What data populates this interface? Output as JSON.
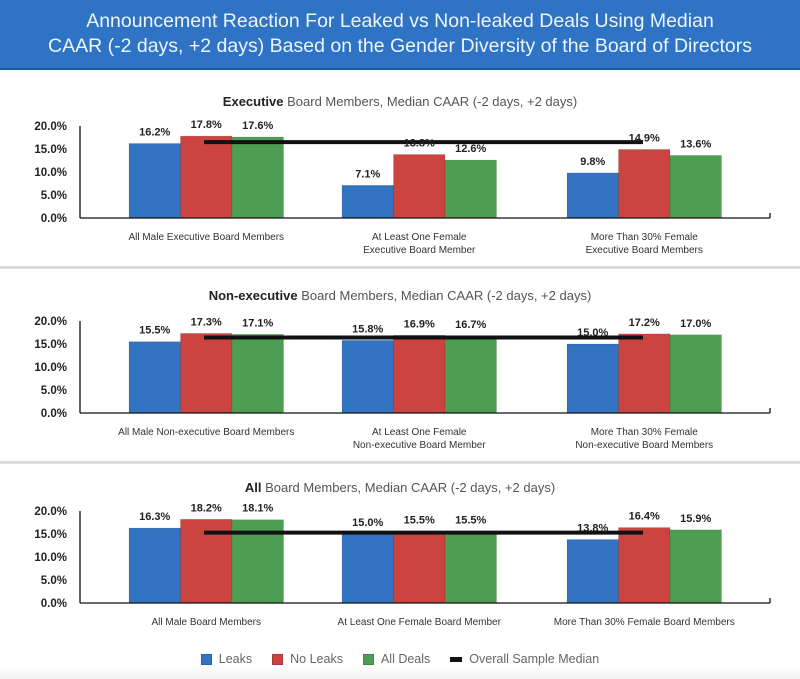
{
  "header": {
    "title_line1": "Announcement Reaction For Leaked vs Non-leaked Deals Using Median",
    "title_line2": "CAAR (-2 days, +2 days) Based on the Gender Diversity of the Board of Directors",
    "background_color": "#2f74c4"
  },
  "legend": {
    "items": [
      {
        "label": "Leaks",
        "color": "#3274c2",
        "shape": "square"
      },
      {
        "label": "No Leaks",
        "color": "#cc4440",
        "shape": "square"
      },
      {
        "label": "All Deals",
        "color": "#4d9e52",
        "shape": "square"
      },
      {
        "label": "Overall Sample Median",
        "color": "#111111",
        "shape": "line"
      }
    ]
  },
  "chart_data": [
    {
      "type": "bar",
      "title_bold": "Executive",
      "title_rest": " Board Members, Median CAAR (-2 days, +2 days)",
      "xlabel": "",
      "ylabel": "",
      "ylim": [
        0,
        20
      ],
      "yticks": [
        "0.0%",
        "5.0%",
        "10.0%",
        "15.0%",
        "20.0%"
      ],
      "grid": false,
      "legend_position": "bottom",
      "categories": [
        [
          "All Male Executive Board Members"
        ],
        [
          "At Least One Female",
          "Executive Board Member"
        ],
        [
          "More Than 30% Female",
          "Executive Board Members"
        ]
      ],
      "series": [
        {
          "name": "Leaks",
          "color": "#3274c2",
          "values": [
            16.2,
            7.1,
            9.8
          ],
          "labels": [
            "16.2%",
            "7.1%",
            "9.8%"
          ]
        },
        {
          "name": "No Leaks",
          "color": "#cc4440",
          "values": [
            17.8,
            13.8,
            14.9
          ],
          "labels": [
            "17.8%",
            "13.8%",
            "14.9%"
          ]
        },
        {
          "name": "All Deals",
          "color": "#4d9e52",
          "values": [
            17.6,
            12.6,
            13.6
          ],
          "labels": [
            "17.6%",
            "12.6%",
            "13.6%"
          ]
        }
      ],
      "overall_sample_median": 16.5
    },
    {
      "type": "bar",
      "title_bold": "Non-executive",
      "title_rest": " Board Members, Median CAAR (-2 days, +2 days)",
      "xlabel": "",
      "ylabel": "",
      "ylim": [
        0,
        20
      ],
      "yticks": [
        "0.0%",
        "5.0%",
        "10.0%",
        "15.0%",
        "20.0%"
      ],
      "grid": false,
      "legend_position": "bottom",
      "categories": [
        [
          "All Male Non-executive Board Members"
        ],
        [
          "At Least One Female",
          "Non-executive Board Member"
        ],
        [
          "More Than 30% Female",
          "Non-executive Board Members"
        ]
      ],
      "series": [
        {
          "name": "Leaks",
          "color": "#3274c2",
          "values": [
            15.5,
            15.8,
            15.0
          ],
          "labels": [
            "15.5%",
            "15.8%",
            "15.0%"
          ]
        },
        {
          "name": "No Leaks",
          "color": "#cc4440",
          "values": [
            17.3,
            16.9,
            17.2
          ],
          "labels": [
            "17.3%",
            "16.9%",
            "17.2%"
          ]
        },
        {
          "name": "All Deals",
          "color": "#4d9e52",
          "values": [
            17.1,
            16.7,
            17.0
          ],
          "labels": [
            "17.1%",
            "16.7%",
            "17.0%"
          ]
        }
      ],
      "overall_sample_median": 16.4
    },
    {
      "type": "bar",
      "title_bold": "All",
      "title_rest": " Board Members, Median CAAR (-2 days, +2 days)",
      "xlabel": "",
      "ylabel": "",
      "ylim": [
        0,
        20
      ],
      "yticks": [
        "0.0%",
        "5.0%",
        "10.0%",
        "15.0%",
        "20.0%"
      ],
      "grid": false,
      "legend_position": "bottom",
      "categories": [
        [
          "All Male Board Members"
        ],
        [
          "At Least One Female Board Member"
        ],
        [
          "More Than 30% Female Board Members"
        ]
      ],
      "series": [
        {
          "name": "Leaks",
          "color": "#3274c2",
          "values": [
            16.3,
            15.0,
            13.8
          ],
          "labels": [
            "16.3%",
            "15.0%",
            "13.8%"
          ]
        },
        {
          "name": "No Leaks",
          "color": "#cc4440",
          "values": [
            18.2,
            15.5,
            16.4
          ],
          "labels": [
            "18.2%",
            "15.5%",
            "16.4%"
          ]
        },
        {
          "name": "All Deals",
          "color": "#4d9e52",
          "values": [
            18.1,
            15.5,
            15.9
          ],
          "labels": [
            "18.1%",
            "15.5%",
            "15.9%"
          ]
        }
      ],
      "overall_sample_median": 15.3
    }
  ]
}
